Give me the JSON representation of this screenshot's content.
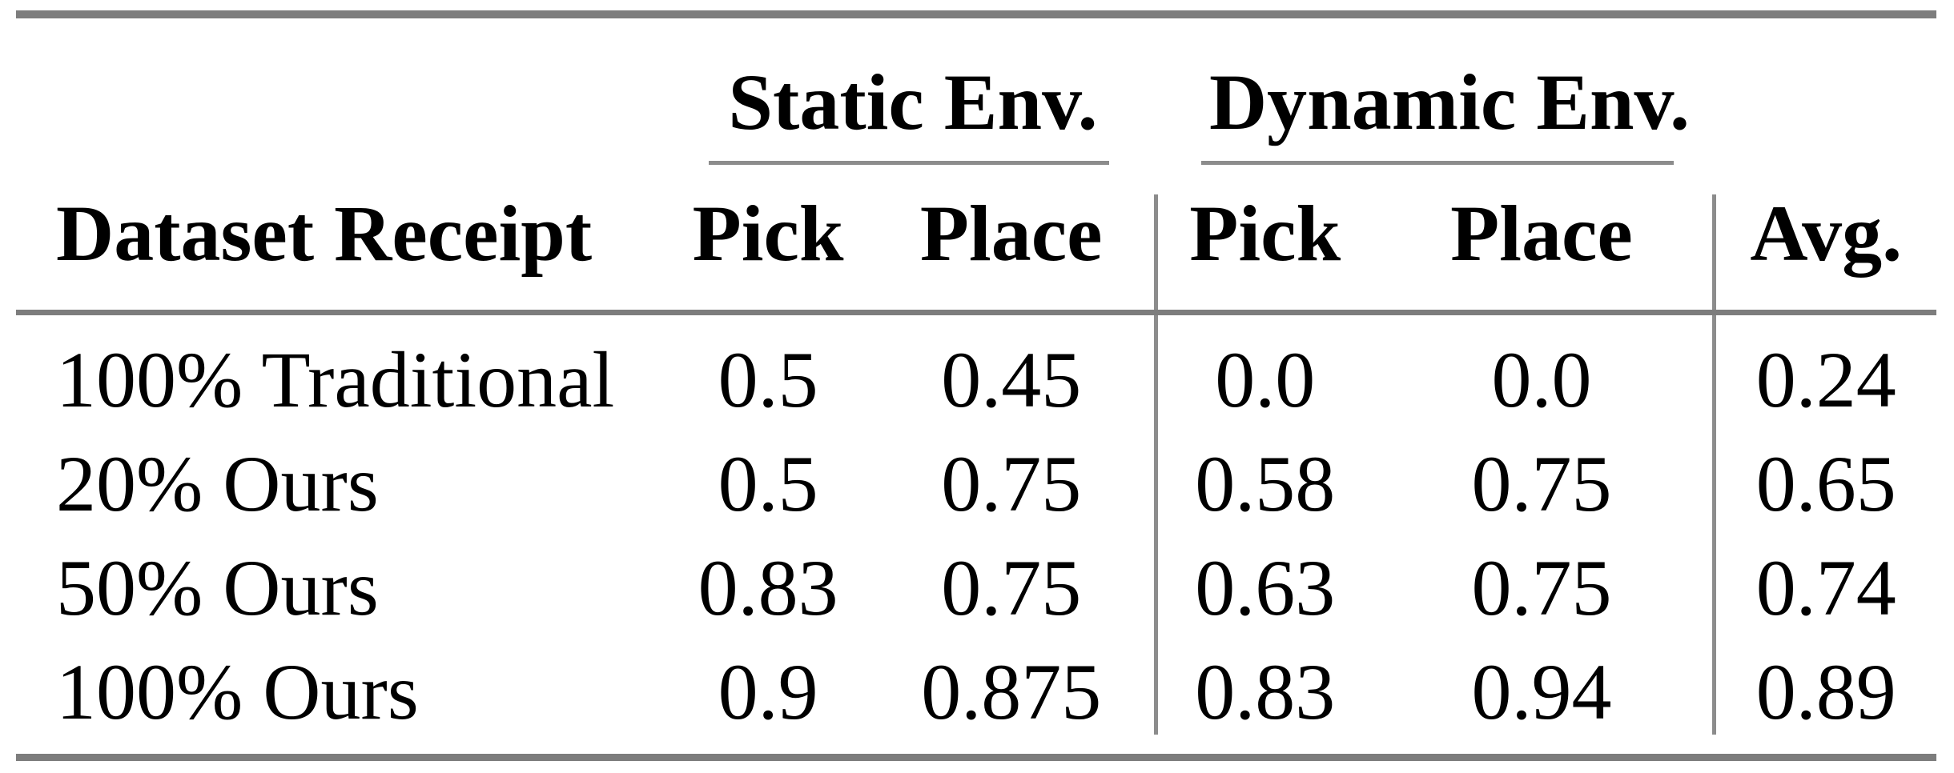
{
  "figure": {
    "background": "#ffffff",
    "text_color": "#000000",
    "thick_rule_color": "#7d7d7d",
    "thin_rule_color": "#8c8c8c"
  },
  "table": {
    "column_groups": [
      {
        "label": "Static Env."
      },
      {
        "label": "Dynamic Env."
      }
    ],
    "header": {
      "row_label": "Dataset Receipt",
      "static_pick": "Pick",
      "static_place": "Place",
      "dynamic_pick": "Pick",
      "dynamic_place": "Place",
      "avg": "Avg."
    },
    "rows": [
      {
        "label": "100% Traditional",
        "static_pick": "0.5",
        "static_place": "0.45",
        "dynamic_pick": "0.0",
        "dynamic_place": "0.0",
        "avg": "0.24"
      },
      {
        "label": "20% Ours",
        "static_pick": "0.5",
        "static_place": "0.75",
        "dynamic_pick": "0.58",
        "dynamic_place": "0.75",
        "avg": "0.65"
      },
      {
        "label": "50% Ours",
        "static_pick": "0.83",
        "static_place": "0.75",
        "dynamic_pick": "0.63",
        "dynamic_place": "0.75",
        "avg": "0.74"
      },
      {
        "label": "100% Ours",
        "static_pick": "0.9",
        "static_place": "0.875",
        "dynamic_pick": "0.83",
        "dynamic_place": "0.94",
        "avg": "0.89"
      }
    ]
  },
  "chart_data": {
    "type": "table",
    "columns": [
      "Dataset Receipt",
      "Static Env. Pick",
      "Static Env. Place",
      "Dynamic Env. Pick",
      "Dynamic Env. Place",
      "Avg."
    ],
    "rows": [
      [
        "100% Traditional",
        0.5,
        0.45,
        0.0,
        0.0,
        0.24
      ],
      [
        "20% Ours",
        0.5,
        0.75,
        0.58,
        0.75,
        0.65
      ],
      [
        "50% Ours",
        0.83,
        0.75,
        0.63,
        0.75,
        0.74
      ],
      [
        "100% Ours",
        0.9,
        0.875,
        0.83,
        0.94,
        0.89
      ]
    ]
  }
}
